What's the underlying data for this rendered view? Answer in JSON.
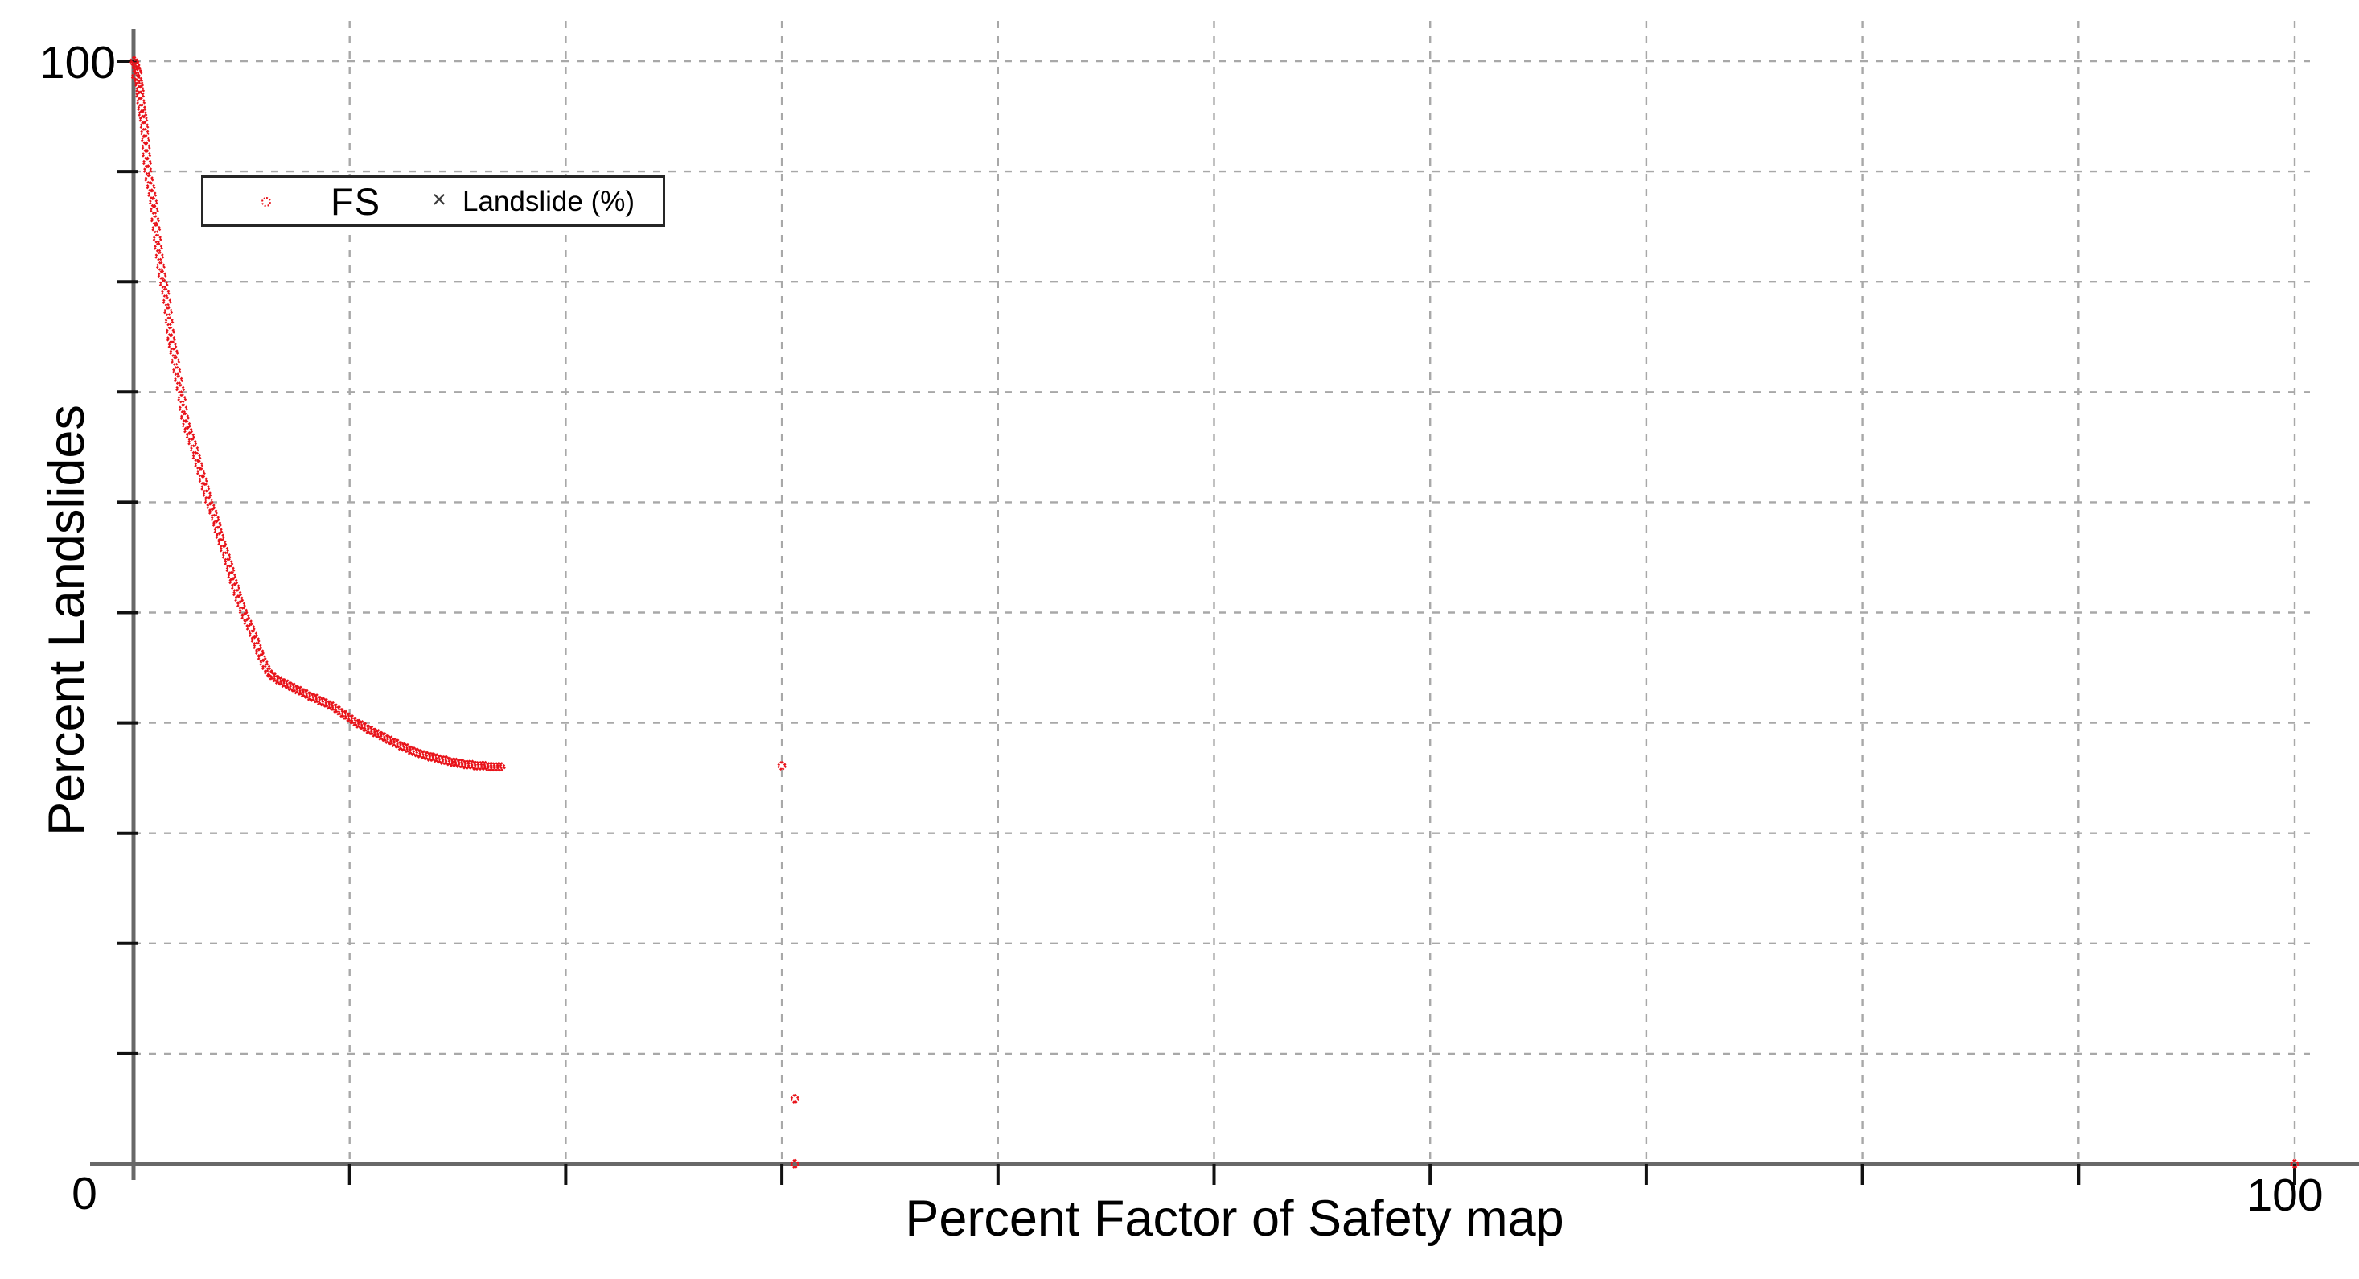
{
  "page": {
    "background": "#ffffff"
  },
  "chart_data": {
    "type": "scatter",
    "title": "",
    "xlabel": "Percent Factor of Safety map",
    "ylabel": "Percent Landslides",
    "xlim": [
      0,
      100
    ],
    "ylim": [
      0,
      100
    ],
    "grid": {
      "on": true,
      "interval": 10,
      "style": "dashed",
      "color": "#a8a8a8"
    },
    "ticks": {
      "x_interval": 10,
      "y_interval": 10
    },
    "tick_labels": {
      "y_max": "100",
      "origin": "0",
      "x_max": "100"
    },
    "legend": {
      "position": "top-left-inside",
      "items": [
        {
          "label": "FS",
          "marker": "diamond-outline",
          "color": "#e8131a"
        },
        {
          "label": "Landslide (%)",
          "marker": "x",
          "color": "#3a3a3a"
        }
      ]
    },
    "series": [
      {
        "name": "FS",
        "color": "#e8131a",
        "marker": "diamond-outline",
        "points": [
          [
            0.03,
            100
          ],
          [
            0.08,
            99.8
          ],
          [
            0.12,
            99.5
          ],
          [
            0.16,
            99.2
          ],
          [
            0.2,
            99.0
          ],
          [
            0.1,
            98.6
          ],
          [
            0.22,
            98.3
          ],
          [
            0.26,
            97.9
          ],
          [
            0.3,
            97.4
          ],
          [
            0.3,
            96.9
          ],
          [
            0.34,
            96.3
          ],
          [
            0.38,
            95.7
          ],
          [
            0.42,
            95.2
          ],
          [
            0.46,
            94.7
          ],
          [
            0.5,
            94.1
          ],
          [
            0.52,
            93.5
          ],
          [
            0.55,
            92.9
          ],
          [
            0.58,
            92.2
          ],
          [
            0.6,
            91.5
          ],
          [
            0.63,
            90.8
          ],
          [
            0.66,
            90.1
          ],
          [
            0.72,
            89.3
          ],
          [
            0.8,
            88.6
          ],
          [
            0.86,
            87.9
          ],
          [
            0.92,
            87.2
          ],
          [
            0.96,
            86.5
          ],
          [
            1.0,
            85.6
          ],
          [
            1.05,
            84.8
          ],
          [
            1.1,
            83.9
          ],
          [
            1.15,
            83.1
          ],
          [
            1.2,
            82.3
          ],
          [
            1.26,
            81.4
          ],
          [
            1.32,
            80.6
          ],
          [
            1.4,
            79.8
          ],
          [
            1.48,
            79.0
          ],
          [
            1.55,
            78.2
          ],
          [
            1.6,
            77.3
          ],
          [
            1.65,
            76.4
          ],
          [
            1.7,
            75.5
          ],
          [
            1.74,
            74.8
          ],
          [
            1.8,
            74.2
          ],
          [
            1.87,
            73.6
          ],
          [
            1.94,
            72.8
          ],
          [
            2.0,
            71.9
          ],
          [
            2.08,
            71.1
          ],
          [
            2.16,
            70.3
          ],
          [
            2.24,
            69.4
          ],
          [
            2.3,
            68.5
          ],
          [
            2.37,
            67.7
          ],
          [
            2.45,
            67.0
          ],
          [
            2.53,
            66.5
          ],
          [
            2.63,
            66.0
          ],
          [
            2.72,
            65.4
          ],
          [
            2.82,
            64.8
          ],
          [
            2.92,
            64.1
          ],
          [
            3.02,
            63.4
          ],
          [
            3.12,
            62.7
          ],
          [
            3.22,
            62.0
          ],
          [
            3.32,
            61.3
          ],
          [
            3.4,
            60.7
          ],
          [
            3.48,
            60.1
          ],
          [
            3.58,
            59.6
          ],
          [
            3.68,
            59.1
          ],
          [
            3.78,
            58.5
          ],
          [
            3.86,
            58.0
          ],
          [
            3.92,
            57.4
          ],
          [
            4.0,
            56.9
          ],
          [
            4.1,
            56.3
          ],
          [
            4.2,
            55.7
          ],
          [
            4.3,
            55.1
          ],
          [
            4.4,
            54.5
          ],
          [
            4.48,
            53.9
          ],
          [
            4.55,
            53.3
          ],
          [
            4.62,
            52.8
          ],
          [
            4.72,
            52.3
          ],
          [
            4.8,
            51.7
          ],
          [
            4.88,
            51.2
          ],
          [
            4.98,
            50.7
          ],
          [
            5.08,
            50.1
          ],
          [
            5.18,
            49.6
          ],
          [
            5.3,
            49.1
          ],
          [
            5.42,
            48.6
          ],
          [
            5.54,
            48.0
          ],
          [
            5.64,
            47.5
          ],
          [
            5.74,
            46.9
          ],
          [
            5.84,
            46.4
          ],
          [
            5.94,
            45.9
          ],
          [
            6.04,
            45.4
          ],
          [
            6.14,
            45.0
          ],
          [
            6.25,
            44.6
          ],
          [
            6.38,
            44.3
          ],
          [
            6.52,
            44.1
          ],
          [
            6.66,
            43.9
          ],
          [
            6.8,
            43.8
          ],
          [
            6.95,
            43.6
          ],
          [
            7.1,
            43.5
          ],
          [
            7.25,
            43.3
          ],
          [
            7.4,
            43.2
          ],
          [
            7.55,
            43.0
          ],
          [
            7.7,
            42.9
          ],
          [
            7.85,
            42.7
          ],
          [
            8.0,
            42.6
          ],
          [
            8.15,
            42.4
          ],
          [
            8.3,
            42.3
          ],
          [
            8.45,
            42.2
          ],
          [
            8.6,
            42.0
          ],
          [
            8.75,
            41.9
          ],
          [
            8.9,
            41.8
          ],
          [
            9.05,
            41.6
          ],
          [
            9.2,
            41.5
          ],
          [
            9.35,
            41.3
          ],
          [
            9.5,
            41.1
          ],
          [
            9.65,
            40.9
          ],
          [
            9.8,
            40.7
          ],
          [
            9.95,
            40.5
          ],
          [
            10.1,
            40.3
          ],
          [
            10.25,
            40.1
          ],
          [
            10.4,
            39.9
          ],
          [
            10.55,
            39.8
          ],
          [
            10.7,
            39.6
          ],
          [
            10.85,
            39.4
          ],
          [
            11.0,
            39.3
          ],
          [
            11.15,
            39.1
          ],
          [
            11.3,
            39.0
          ],
          [
            11.45,
            38.8
          ],
          [
            11.6,
            38.7
          ],
          [
            11.75,
            38.5
          ],
          [
            11.9,
            38.4
          ],
          [
            12.05,
            38.2
          ],
          [
            12.2,
            38.1
          ],
          [
            12.35,
            37.9
          ],
          [
            12.5,
            37.8
          ],
          [
            12.65,
            37.7
          ],
          [
            12.8,
            37.5
          ],
          [
            12.95,
            37.4
          ],
          [
            13.1,
            37.3
          ],
          [
            13.25,
            37.2
          ],
          [
            13.4,
            37.1
          ],
          [
            13.55,
            37.0
          ],
          [
            13.7,
            36.9
          ],
          [
            13.85,
            36.9
          ],
          [
            14.0,
            36.8
          ],
          [
            14.15,
            36.7
          ],
          [
            14.3,
            36.6
          ],
          [
            14.45,
            36.6
          ],
          [
            14.6,
            36.5
          ],
          [
            14.75,
            36.4
          ],
          [
            14.9,
            36.4
          ],
          [
            15.05,
            36.3
          ],
          [
            15.2,
            36.3
          ],
          [
            15.35,
            36.2
          ],
          [
            15.5,
            36.2
          ],
          [
            15.65,
            36.2
          ],
          [
            15.8,
            36.1
          ],
          [
            15.95,
            36.1
          ],
          [
            16.1,
            36.1
          ],
          [
            16.25,
            36.1
          ],
          [
            16.4,
            36.0
          ],
          [
            16.55,
            36.0
          ],
          [
            16.7,
            36.0
          ],
          [
            16.85,
            36.0
          ],
          [
            17.0,
            36.0
          ],
          [
            30.0,
            36.1
          ],
          [
            30.6,
            5.9
          ],
          [
            30.6,
            0.0
          ],
          [
            100,
            0.0
          ]
        ]
      },
      {
        "name": "Landslide (%)",
        "color": "#3a3a3a",
        "marker": "x",
        "points": []
      }
    ]
  }
}
